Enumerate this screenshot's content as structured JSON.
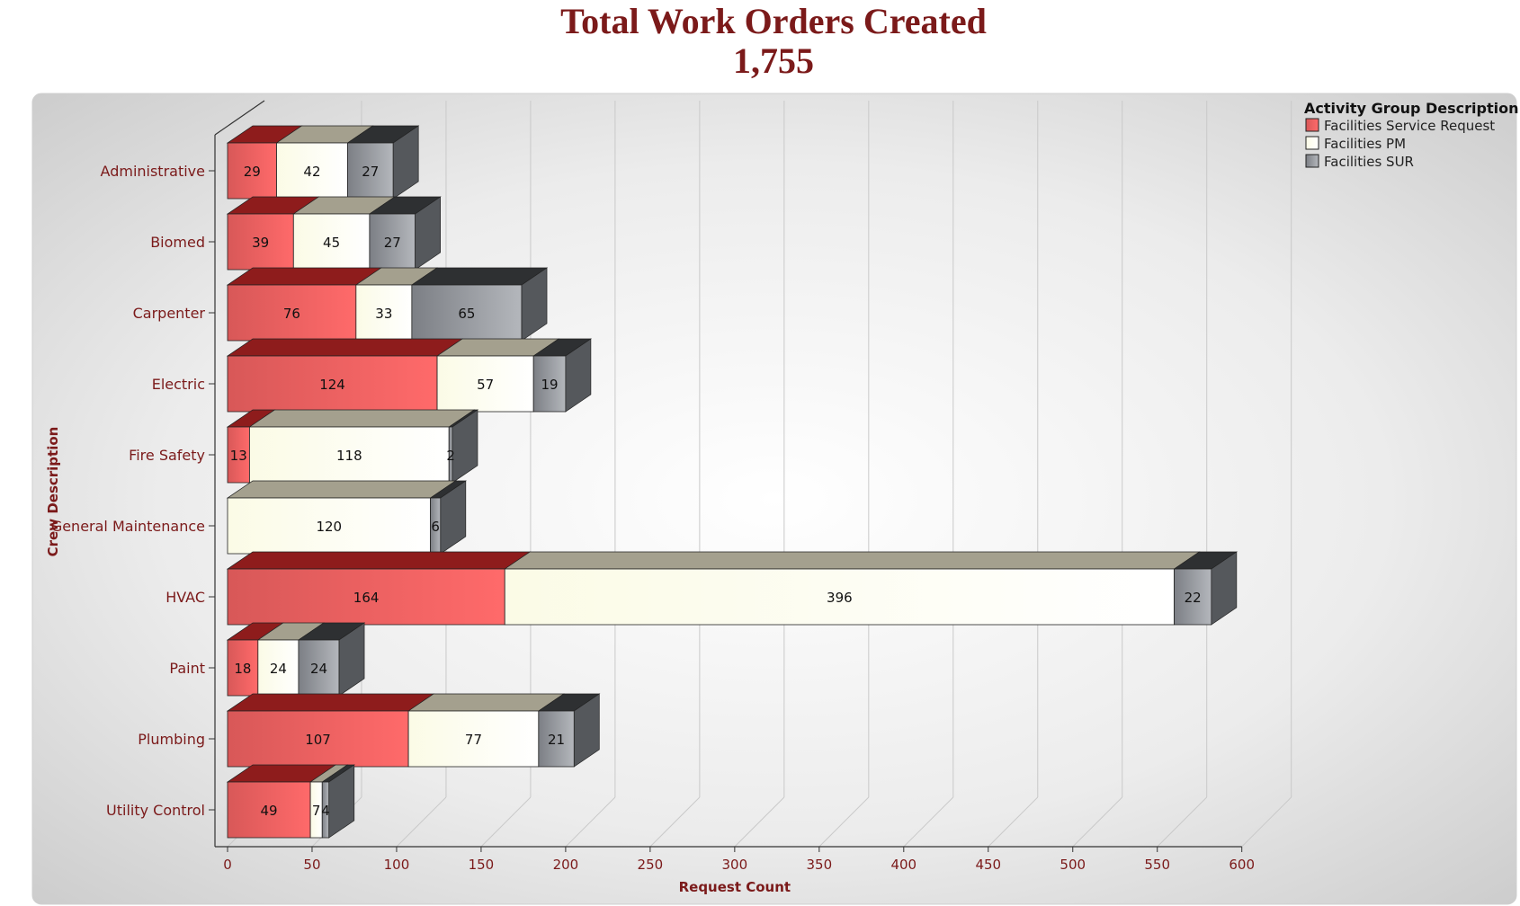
{
  "chart_data": {
    "type": "bar",
    "orientation": "horizontal",
    "stacked": true,
    "style": "3d",
    "title": "Total Work Orders Created",
    "subtitle": "1,755",
    "xlabel": "Request Count",
    "ylabel": "Crew Description",
    "xlim": [
      0,
      600
    ],
    "xticks": [
      0,
      50,
      100,
      150,
      200,
      250,
      300,
      350,
      400,
      450,
      500,
      550,
      600
    ],
    "grid": true,
    "legend": {
      "title": "Activity Group Description",
      "position": "top-right"
    },
    "categories": [
      "Administrative",
      "Biomed",
      "Carpenter",
      "Electric",
      "Fire Safety",
      "General Maintenance",
      "HVAC",
      "Paint",
      "Plumbing",
      "Utility Control"
    ],
    "series": [
      {
        "name": "Facilities Service Request",
        "color": "#ee5555",
        "values": [
          29,
          39,
          76,
          124,
          13,
          null,
          164,
          18,
          107,
          49
        ]
      },
      {
        "name": "Facilities PM",
        "color": "#fffff2",
        "values": [
          42,
          45,
          33,
          57,
          118,
          120,
          396,
          24,
          77,
          7
        ]
      },
      {
        "name": "Facilities SUR",
        "color": "#8a8d93",
        "values": [
          27,
          27,
          65,
          19,
          2,
          6,
          22,
          24,
          21,
          4
        ]
      }
    ]
  }
}
